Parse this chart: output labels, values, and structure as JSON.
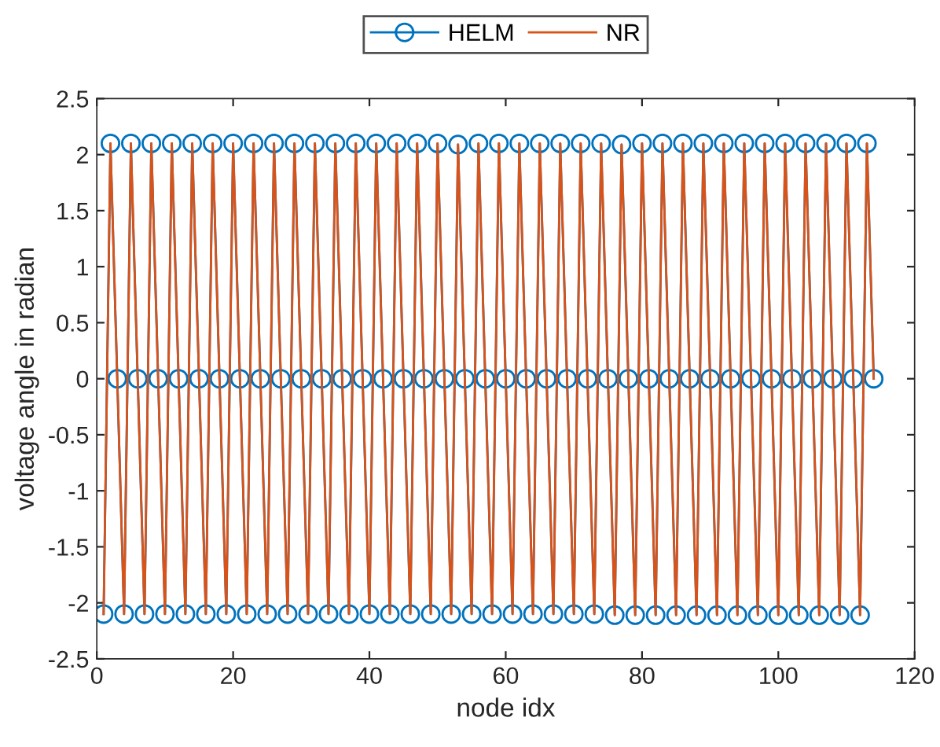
{
  "chart_data": {
    "type": "line",
    "xlabel": "node idx",
    "ylabel": "voltage angle in radian",
    "x": [
      1,
      2,
      3,
      4,
      5,
      6,
      7,
      8,
      9,
      10,
      11,
      12,
      13,
      14,
      15,
      16,
      17,
      18,
      19,
      20,
      21,
      22,
      23,
      24,
      25,
      26,
      27,
      28,
      29,
      30,
      31,
      32,
      33,
      34,
      35,
      36,
      37,
      38,
      39,
      40,
      41,
      42,
      43,
      44,
      45,
      46,
      47,
      48,
      49,
      50,
      51,
      52,
      53,
      54,
      55,
      56,
      57,
      58,
      59,
      60,
      61,
      62,
      63,
      64,
      65,
      66,
      67,
      68,
      69,
      70,
      71,
      72,
      73,
      74,
      75,
      76,
      77,
      78,
      79,
      80,
      81,
      82,
      83,
      84,
      85,
      86,
      87,
      88,
      89,
      90,
      91,
      92,
      93,
      94,
      95,
      96,
      97,
      98,
      99,
      100,
      101,
      102,
      103,
      104,
      105,
      106,
      107,
      108,
      109,
      110,
      111,
      112,
      113,
      114
    ],
    "series": [
      {
        "name": "HELM",
        "color": "#0072bd",
        "marker": "circle",
        "values": [
          -2.1,
          2.1,
          0,
          -2.1,
          2.1,
          0,
          -2.1,
          2.1,
          0,
          -2.1,
          2.1,
          0,
          -2.1,
          2.1,
          0,
          -2.1,
          2.1,
          0,
          -2.1,
          2.1,
          0,
          -2.1,
          2.1,
          0,
          -2.1,
          2.1,
          0,
          -2.1,
          2.1,
          0,
          -2.1,
          2.1,
          0,
          -2.1,
          2.1,
          0,
          -2.1,
          2.1,
          0,
          -2.1,
          2.1,
          0,
          -2.1,
          2.1,
          0,
          -2.1,
          2.1,
          0,
          -2.1,
          2.1,
          0,
          -2.1,
          2.09,
          0,
          -2.1,
          2.1,
          0,
          -2.1,
          2.1,
          0,
          -2.1,
          2.1,
          0,
          -2.1,
          2.1,
          0,
          -2.1,
          2.1,
          0,
          -2.1,
          2.1,
          0,
          -2.1,
          2.1,
          0,
          -2.11,
          2.09,
          0,
          -2.11,
          2.1,
          0,
          -2.11,
          2.1,
          0,
          -2.11,
          2.1,
          0,
          -2.11,
          2.1,
          0,
          -2.11,
          2.1,
          0,
          -2.11,
          2.1,
          0,
          -2.11,
          2.1,
          0,
          -2.11,
          2.1,
          0,
          -2.11,
          2.1,
          0,
          -2.11,
          2.1,
          0,
          -2.11,
          2.1,
          0,
          -2.11,
          2.1,
          0
        ]
      },
      {
        "name": "NR",
        "color": "#d95319",
        "marker": "none",
        "values": [
          -2.1,
          2.1,
          0,
          -2.1,
          2.1,
          0,
          -2.1,
          2.1,
          0,
          -2.1,
          2.1,
          0,
          -2.1,
          2.1,
          0,
          -2.1,
          2.1,
          0,
          -2.1,
          2.1,
          0,
          -2.1,
          2.1,
          0,
          -2.1,
          2.1,
          0,
          -2.1,
          2.1,
          0,
          -2.1,
          2.1,
          0,
          -2.1,
          2.1,
          0,
          -2.1,
          2.1,
          0,
          -2.1,
          2.1,
          0,
          -2.1,
          2.1,
          0,
          -2.1,
          2.1,
          0,
          -2.1,
          2.1,
          0,
          -2.1,
          2.09,
          0,
          -2.1,
          2.1,
          0,
          -2.1,
          2.1,
          0,
          -2.1,
          2.1,
          0,
          -2.1,
          2.1,
          0,
          -2.1,
          2.1,
          0,
          -2.1,
          2.1,
          0,
          -2.1,
          2.1,
          0,
          -2.11,
          2.09,
          0,
          -2.11,
          2.1,
          0,
          -2.11,
          2.1,
          0,
          -2.11,
          2.1,
          0,
          -2.11,
          2.1,
          0,
          -2.11,
          2.1,
          0,
          -2.11,
          2.1,
          0,
          -2.11,
          2.1,
          0,
          -2.11,
          2.1,
          0,
          -2.11,
          2.1,
          0,
          -2.11,
          2.1,
          0,
          -2.11,
          2.1,
          0,
          -2.11,
          2.1,
          0
        ]
      }
    ],
    "xlim": [
      0,
      120
    ],
    "xticks": [
      0,
      20,
      40,
      60,
      80,
      100,
      120
    ],
    "ylim": [
      -2.5,
      2.5
    ],
    "yticks": [
      -2.5,
      -2,
      -1.5,
      -1,
      -0.5,
      0,
      0.5,
      1,
      1.5,
      2,
      2.5
    ],
    "grid": false,
    "legend": "top",
    "line_style": "solid"
  }
}
